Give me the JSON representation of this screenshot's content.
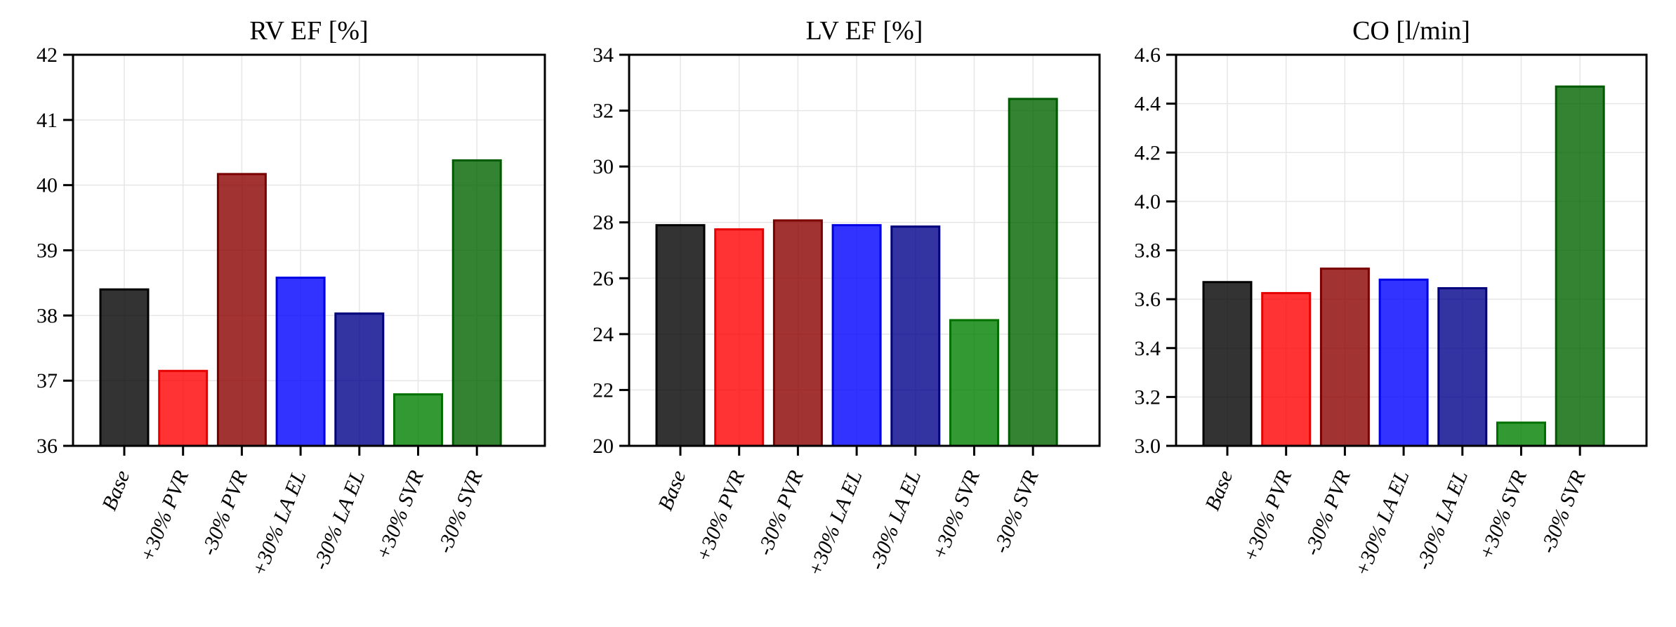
{
  "chart_data": [
    {
      "type": "bar",
      "title": "RV EF [%]",
      "categories": [
        "Base",
        "+30% PVR",
        "-30% PVR",
        "+30% LA EL",
        "-30% LA EL",
        "+30% SVR",
        "-30% SVR"
      ],
      "values": [
        38.4,
        37.15,
        40.17,
        38.58,
        38.03,
        36.79,
        40.38
      ],
      "ylim": [
        36,
        42
      ],
      "yticks": [
        36,
        37,
        38,
        39,
        40,
        41,
        42
      ],
      "ytick_labels": [
        "36",
        "37",
        "38",
        "39",
        "40",
        "41",
        "42"
      ],
      "grid": true
    },
    {
      "type": "bar",
      "title": "LV EF [%]",
      "categories": [
        "Base",
        "+30% PVR",
        "-30% PVR",
        "+30% LA EL",
        "-30% LA EL",
        "+30% SVR",
        "-30% SVR"
      ],
      "values": [
        27.9,
        27.75,
        28.07,
        27.9,
        27.85,
        24.5,
        32.42
      ],
      "ylim": [
        20,
        34
      ],
      "yticks": [
        20,
        22,
        24,
        26,
        28,
        30,
        32,
        34
      ],
      "ytick_labels": [
        "20",
        "22",
        "24",
        "26",
        "28",
        "30",
        "32",
        "34"
      ],
      "grid": true
    },
    {
      "type": "bar",
      "title": "CO [l/min]",
      "categories": [
        "Base",
        "+30% PVR",
        "-30% PVR",
        "+30% LA EL",
        "-30% LA EL",
        "+30% SVR",
        "-30% SVR"
      ],
      "values": [
        3.67,
        3.625,
        3.725,
        3.68,
        3.645,
        3.095,
        4.47
      ],
      "ylim": [
        3.0,
        4.6
      ],
      "yticks": [
        3.0,
        3.2,
        3.4,
        3.6,
        3.8,
        4.0,
        4.2,
        4.4,
        4.6
      ],
      "ytick_labels": [
        "3.0",
        "3.2",
        "3.4",
        "3.6",
        "3.8",
        "4.0",
        "4.2",
        "4.4",
        "4.6"
      ],
      "grid": true
    }
  ],
  "colors": {
    "bar_fill": [
      "#000000",
      "#ff0000",
      "#8b0000",
      "#0000ff",
      "#00008b",
      "#008000",
      "#006400"
    ],
    "bar_edge": [
      "#000000",
      "#e60000",
      "#7a0000",
      "#0000e6",
      "#00007a",
      "#007000",
      "#005a00"
    ],
    "bar_opacity": 0.8,
    "grid": "#e6e6e6",
    "axis": "#000000"
  }
}
